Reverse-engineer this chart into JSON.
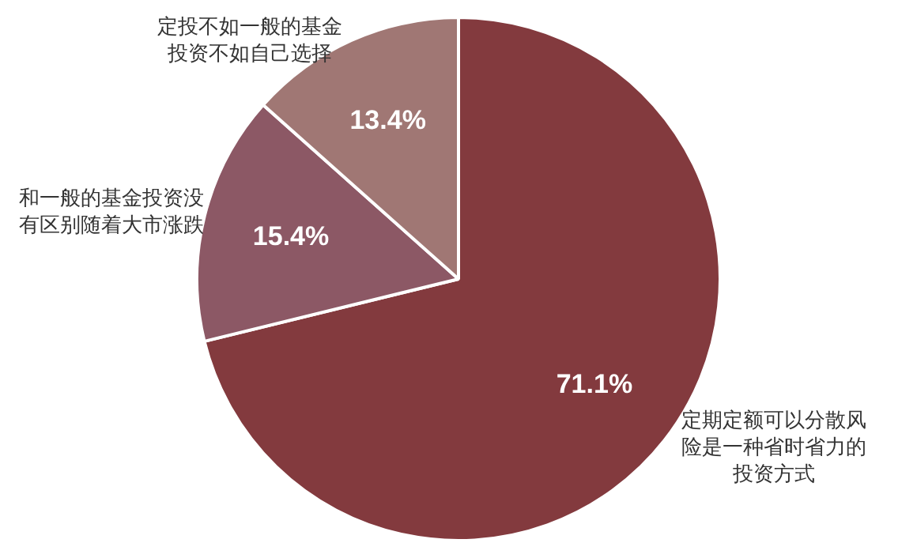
{
  "chart_data": {
    "type": "pie",
    "categories": [
      "定期定额可以分散风险是一种省时省力的投资方式",
      "和一般的基金投资没有区别随着大市涨跌",
      "定投不如一般的基金投资不如自己选择"
    ],
    "values": [
      71.1,
      15.4,
      13.4
    ],
    "value_labels": [
      "71.1%",
      "15.4%",
      "13.4%"
    ],
    "colors": [
      "#833a3e",
      "#8c5865",
      "#a07774"
    ],
    "legend": false
  }
}
